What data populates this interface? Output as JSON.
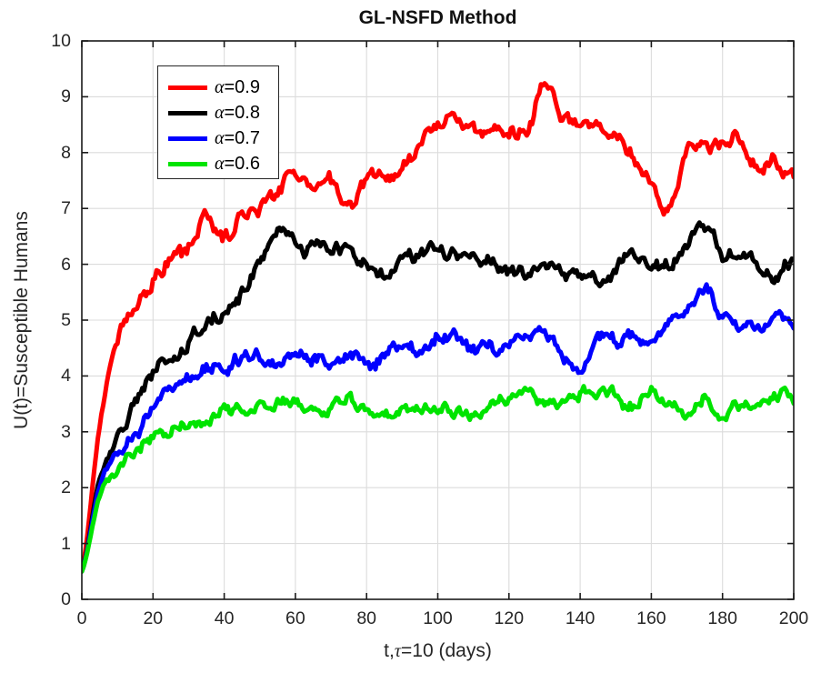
{
  "chart_data": {
    "type": "line",
    "title": "GL-NSFD Method",
    "xlabel_parts": {
      "prefix": "t,",
      "symbol": "τ",
      "suffix": "=10 (days)"
    },
    "xlabel_plain": "t,τ=10 (days)",
    "ylabel": "U(t)=Susceptible Humans",
    "xlim": [
      0,
      200
    ],
    "ylim": [
      0,
      10
    ],
    "x_ticks": [
      0,
      20,
      40,
      60,
      80,
      100,
      120,
      140,
      160,
      180,
      200
    ],
    "y_ticks": [
      0,
      1,
      2,
      3,
      4,
      5,
      6,
      7,
      8,
      9,
      10
    ],
    "grid": true,
    "legend_position": "top-left-inside",
    "line_style": "noisy-stochastic",
    "x": [
      0,
      5,
      10,
      15,
      20,
      25,
      30,
      35,
      40,
      45,
      50,
      55,
      60,
      65,
      70,
      75,
      80,
      85,
      90,
      95,
      100,
      105,
      110,
      115,
      120,
      125,
      130,
      135,
      140,
      145,
      150,
      155,
      160,
      165,
      170,
      175,
      180,
      185,
      190,
      195,
      200
    ],
    "series": [
      {
        "label_symbol": "α",
        "label_value": "=0.9",
        "alpha": 0.9,
        "color": "#ff0000",
        "noise": 0.14,
        "values": [
          0.5,
          3.1,
          4.7,
          5.25,
          5.75,
          6.1,
          6.2,
          6.85,
          6.45,
          6.9,
          7.05,
          7.35,
          7.7,
          7.35,
          7.45,
          7.15,
          7.45,
          7.65,
          7.65,
          8.1,
          8.45,
          8.6,
          8.45,
          8.3,
          8.5,
          8.4,
          9.1,
          8.6,
          8.5,
          8.35,
          8.3,
          7.9,
          7.3,
          7.0,
          7.95,
          8.15,
          8.0,
          8.3,
          7.75,
          7.95,
          7.5
        ]
      },
      {
        "label_symbol": "α",
        "label_value": "=0.8",
        "alpha": 0.8,
        "color": "#000000",
        "noise": 0.13,
        "values": [
          0.5,
          2.15,
          2.85,
          3.55,
          4.1,
          4.3,
          4.6,
          4.9,
          5.2,
          5.45,
          6.0,
          6.7,
          6.45,
          6.3,
          6.3,
          6.2,
          6.1,
          5.8,
          6.15,
          6.1,
          6.25,
          6.15,
          6.05,
          6.0,
          5.85,
          5.8,
          6.05,
          5.85,
          5.75,
          5.65,
          5.9,
          6.3,
          5.9,
          6.0,
          6.3,
          6.55,
          6.2,
          6.15,
          6.0,
          5.75,
          6.05
        ]
      },
      {
        "label_symbol": "α",
        "label_value": "=0.7",
        "alpha": 0.7,
        "color": "#0000ff",
        "noise": 0.12,
        "values": [
          0.5,
          2.0,
          2.6,
          3.0,
          3.4,
          3.75,
          3.95,
          4.1,
          4.2,
          4.3,
          4.25,
          4.2,
          4.4,
          4.35,
          4.25,
          4.45,
          4.2,
          4.4,
          4.65,
          4.4,
          4.7,
          4.7,
          4.45,
          4.45,
          4.6,
          4.7,
          4.8,
          4.4,
          4.05,
          4.7,
          4.6,
          4.75,
          4.55,
          4.9,
          5.25,
          5.55,
          5.15,
          4.95,
          4.95,
          5.05,
          4.9
        ]
      },
      {
        "label_symbol": "α",
        "label_value": "=0.6",
        "alpha": 0.6,
        "color": "#00e400",
        "noise": 0.11,
        "values": [
          0.5,
          1.85,
          2.3,
          2.65,
          2.85,
          3.0,
          3.1,
          3.2,
          3.35,
          3.4,
          3.5,
          3.55,
          3.55,
          3.5,
          3.45,
          3.6,
          3.3,
          3.15,
          3.45,
          3.45,
          3.45,
          3.45,
          3.3,
          3.4,
          3.6,
          3.75,
          3.55,
          3.5,
          3.7,
          3.7,
          3.65,
          3.5,
          3.75,
          3.5,
          3.4,
          3.6,
          3.3,
          3.5,
          3.55,
          3.7,
          3.55
        ]
      }
    ],
    "colors": {
      "grid": "#dcdcdc",
      "axis": "#1a1a1a",
      "text": "#262626",
      "background": "#ffffff"
    }
  }
}
